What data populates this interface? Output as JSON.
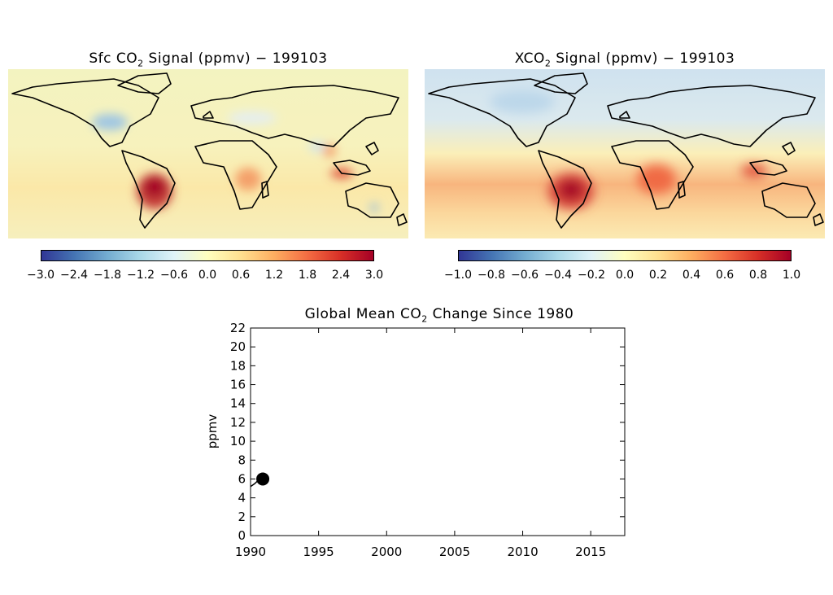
{
  "maps": [
    {
      "title_pre": "Sfc CO",
      "title_sub": "2",
      "title_post": " Signal (ppmv) − 199103",
      "colorbar": {
        "ticks": [
          "−3.0",
          "−2.4",
          "−1.8",
          "−1.2",
          "−0.6",
          "0.0",
          "0.6",
          "1.2",
          "1.8",
          "2.4",
          "3.0"
        ],
        "colors": [
          "#313695",
          "#4575b4",
          "#74add1",
          "#abd9e9",
          "#e0f3f8",
          "#ffffbf",
          "#fee090",
          "#fdae61",
          "#f46d43",
          "#d73027",
          "#a50026"
        ]
      }
    },
    {
      "title_pre": "XCO",
      "title_sub": "2",
      "title_post": " Signal (ppmv) − 199103",
      "colorbar": {
        "ticks": [
          "−1.0",
          "−0.8",
          "−0.6",
          "−0.4",
          "−0.2",
          "0.0",
          "0.2",
          "0.4",
          "0.6",
          "0.8",
          "1.0"
        ],
        "colors": [
          "#313695",
          "#4575b4",
          "#74add1",
          "#abd9e9",
          "#e0f3f8",
          "#ffffbf",
          "#fee090",
          "#fdae61",
          "#f46d43",
          "#d73027",
          "#a50026"
        ]
      }
    }
  ],
  "chart_data": {
    "type": "line",
    "title_pre": "Global Mean CO",
    "title_sub": "2",
    "title_post": " Change Since 1980",
    "xlabel": "",
    "ylabel": "ppmv",
    "xlim": [
      1990,
      2017.5
    ],
    "ylim": [
      0,
      22
    ],
    "xticks": [
      1990,
      1995,
      2000,
      2005,
      2010,
      2015
    ],
    "yticks": [
      0,
      2,
      4,
      6,
      8,
      10,
      12,
      14,
      16,
      18,
      20,
      22
    ],
    "series": [
      {
        "x": [
          1990.0,
          1990.3,
          1990.6,
          1990.9
        ],
        "values": [
          5.2,
          5.5,
          5.9,
          6.0
        ]
      }
    ],
    "marker": {
      "x": 1990.9,
      "y": 6.0
    },
    "grid": false
  }
}
